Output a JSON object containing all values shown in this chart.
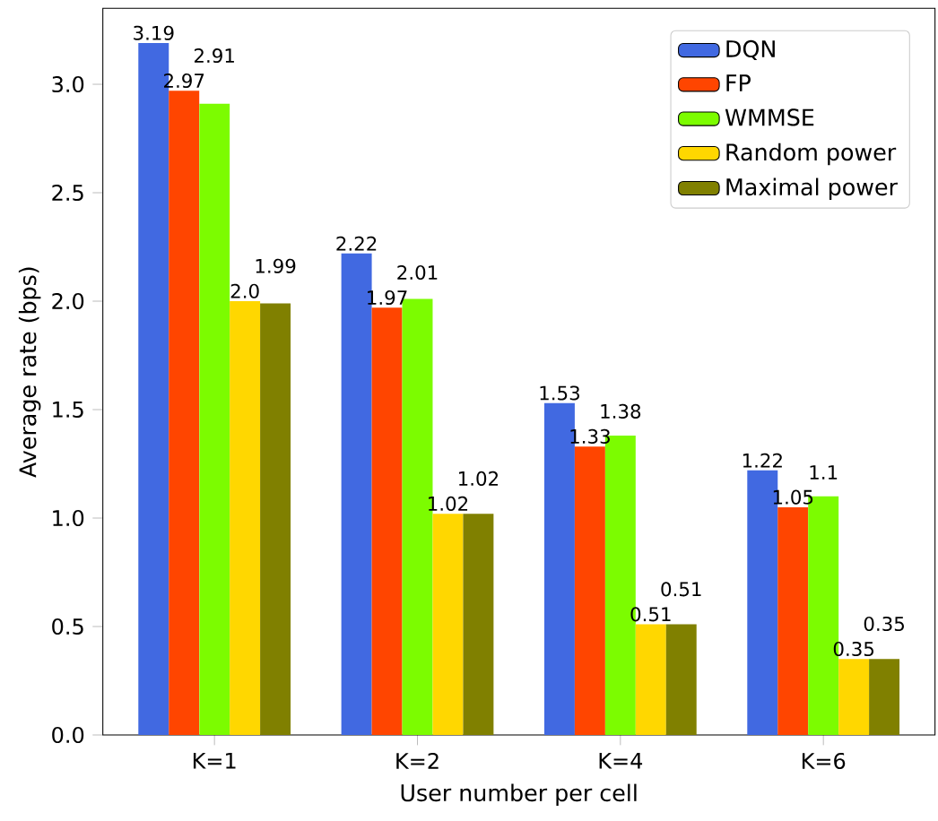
{
  "chart_data": {
    "type": "bar",
    "xlabel": "User number per cell",
    "ylabel": "Average rate (bps)",
    "categories": [
      "K=1",
      "K=2",
      "K=4",
      "K=6"
    ],
    "ylim": [
      0,
      3.35
    ],
    "yticks": [
      {
        "value": 0,
        "label": "0.0"
      },
      {
        "value": 0.5,
        "label": "0.5"
      },
      {
        "value": 1,
        "label": "1.0"
      },
      {
        "value": 1.5,
        "label": "1.5"
      },
      {
        "value": 2,
        "label": "2.0"
      },
      {
        "value": 2.5,
        "label": "2.5"
      },
      {
        "value": 3,
        "label": "3.0"
      }
    ],
    "legend": "top right",
    "grid": false,
    "series": [
      {
        "name": "DQN",
        "color": "#4169e1",
        "values": [
          3.19,
          2.22,
          1.53,
          1.22
        ],
        "value_labels": [
          "3.19",
          "2.22",
          "1.53",
          "1.22"
        ]
      },
      {
        "name": "FP",
        "color": "#ff4500",
        "values": [
          2.97,
          1.97,
          1.33,
          1.05
        ],
        "value_labels": [
          "2.97",
          "1.97",
          "1.33",
          "1.05"
        ]
      },
      {
        "name": "WMMSE",
        "color": "#7cfc00",
        "values": [
          2.91,
          2.01,
          1.38,
          1.1
        ],
        "value_labels": [
          "2.91",
          "2.01",
          "1.38",
          "1.1"
        ]
      },
      {
        "name": "Random power",
        "color": "#ffd700",
        "values": [
          2.0,
          1.02,
          0.51,
          0.35
        ],
        "value_labels": [
          "2.0",
          "1.02",
          "0.51",
          "0.35"
        ]
      },
      {
        "name": "Maximal power",
        "color": "#808000",
        "values": [
          1.99,
          1.02,
          0.51,
          0.35
        ],
        "value_labels": [
          "1.99",
          "1.02",
          "0.51",
          "0.35"
        ]
      }
    ]
  }
}
